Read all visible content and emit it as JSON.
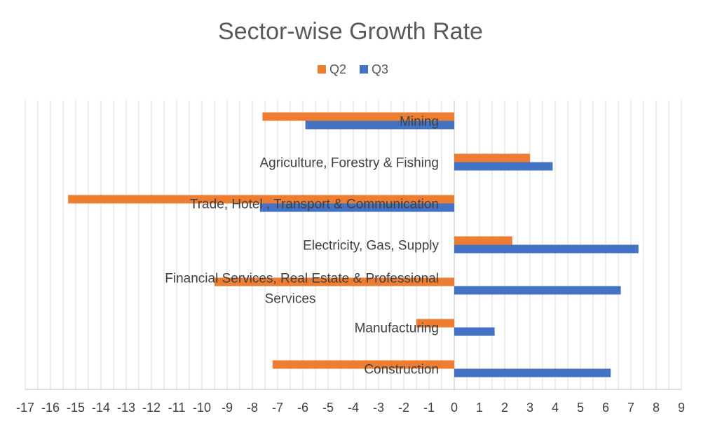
{
  "chart_data": {
    "type": "bar",
    "orientation": "horizontal",
    "title": "Sector-wise Growth Rate",
    "categories": [
      "Mining",
      "Agriculture, Forestry & Fishing",
      "Trade, Hotel , Transport & Communication",
      "Electricity, Gas, Supply",
      "Financial Services, Real Estate & Professional Services",
      "Manufacturing",
      "Construction"
    ],
    "series": [
      {
        "name": "Q2",
        "color": "#ED7D31",
        "values": [
          -7.6,
          3.0,
          -15.3,
          2.3,
          -9.5,
          -1.5,
          -7.2
        ]
      },
      {
        "name": "Q3",
        "color": "#4472C4",
        "values": [
          -5.9,
          3.9,
          -7.7,
          7.3,
          6.6,
          1.6,
          6.2
        ]
      }
    ],
    "xlim": [
      -17,
      9
    ],
    "xticks": [
      -17,
      -16,
      -15,
      -14,
      -13,
      -12,
      -11,
      -10,
      -9,
      -8,
      -7,
      -6,
      -5,
      -4,
      -3,
      -2,
      -1,
      0,
      1,
      2,
      3,
      4,
      5,
      6,
      7,
      8,
      9
    ],
    "minor_gridlines": true,
    "legend_position": "top"
  }
}
